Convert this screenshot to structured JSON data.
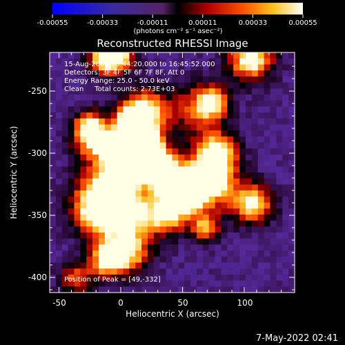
{
  "colorbar": {
    "ticks": [
      "-0.00055",
      "-0.00033",
      "-0.00011",
      "0.00011",
      "0.00033",
      "0.00055"
    ],
    "unit_label": "(photons cm⁻² s⁻¹ asec⁻²)"
  },
  "title": "Reconstructed RHESSI Image",
  "info": {
    "line1": "15-Aug-2006 16:44:20.000 to 16:45:52.000",
    "line2": "Detectors: 3F 4F 5F 6F 7F 8F, Att 0",
    "line3": "Energy Range: 25.0 - 50.0 keV",
    "line4": "Clean     Total counts: 2.73E+03"
  },
  "peak_text": "Position of Peak = [49,-332]",
  "axes": {
    "xlabel": "Heliocentric X (arcsec)",
    "ylabel": "Heliocentric Y (arcsec)",
    "xticks": [
      "-50",
      "0",
      "50",
      "100"
    ],
    "yticks": [
      "-250",
      "-300",
      "-350",
      "-400"
    ]
  },
  "timestamp": "7-May-2022 02:41",
  "colors": {
    "background": "#000000",
    "foreground": "#ffffff"
  }
}
